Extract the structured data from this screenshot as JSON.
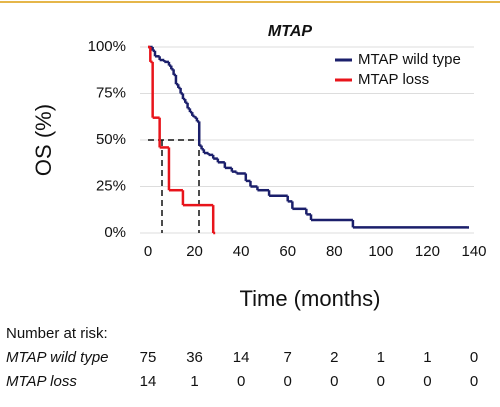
{
  "chart_data": {
    "type": "step",
    "title": "MTAP",
    "xlabel": "Time (months)",
    "ylabel": "OS (%)",
    "xlim": [
      0,
      140
    ],
    "xticks": [
      0,
      20,
      40,
      60,
      80,
      100,
      120,
      140
    ],
    "ylim": [
      0,
      100
    ],
    "yticks": [
      {
        "value": 0,
        "label": "0%"
      },
      {
        "value": 25,
        "label": "25%"
      },
      {
        "value": 50,
        "label": "50%"
      },
      {
        "value": 75,
        "label": "75%"
      },
      {
        "value": 100,
        "label": "100%"
      }
    ],
    "grid": true,
    "legend": "upper right",
    "series": [
      {
        "name": "MTAP wild type",
        "color": "#1b1f6b",
        "x": [
          0,
          2,
          3,
          5,
          7,
          9,
          10,
          11,
          12,
          13,
          14,
          15,
          16,
          17,
          18,
          19,
          20,
          21,
          22,
          23,
          24,
          26,
          28,
          30,
          33,
          36,
          38,
          42,
          44,
          47,
          52,
          60,
          62,
          68,
          70,
          88,
          137
        ],
        "values": [
          100,
          98,
          95,
          93,
          92,
          90,
          88,
          85,
          80,
          78,
          75,
          72,
          70,
          67,
          65,
          63,
          62,
          60,
          47,
          45,
          43,
          42,
          40,
          38,
          35,
          33,
          32,
          28,
          25,
          23,
          20,
          17,
          13,
          10,
          7,
          3,
          3
        ]
      },
      {
        "name": "MTAP loss",
        "color": "#e8141b",
        "x": [
          0,
          1,
          2,
          5,
          9,
          15,
          28
        ],
        "values": [
          100,
          92,
          62,
          46,
          23,
          15,
          0
        ]
      }
    ],
    "risk_table": {
      "title": "Number at risk:",
      "rows": [
        {
          "label": "MTAP wild type",
          "values": [
            75,
            36,
            14,
            7,
            2,
            1,
            1,
            0
          ]
        },
        {
          "label": "MTAP loss",
          "values": [
            14,
            1,
            0,
            0,
            0,
            0,
            0,
            0
          ]
        }
      ]
    }
  }
}
